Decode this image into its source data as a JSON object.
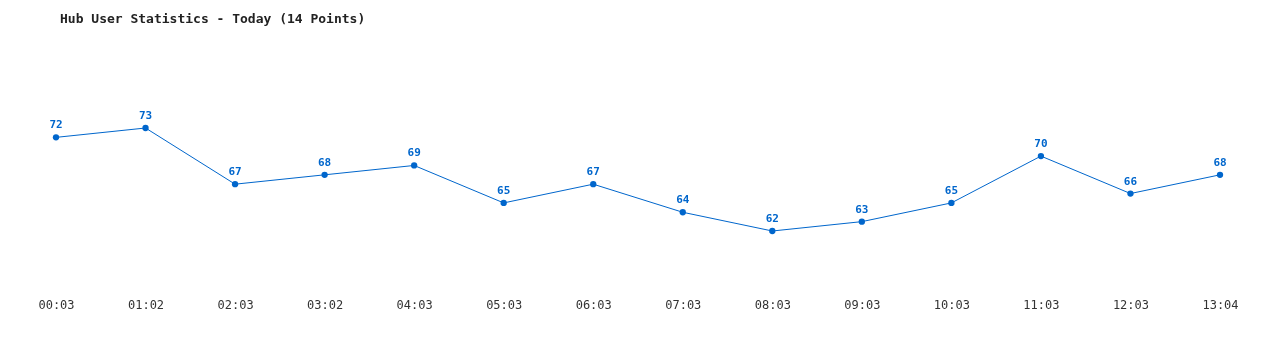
{
  "chart_data": {
    "type": "line",
    "title": "Hub User Statistics - Today (14 Points)",
    "categories": [
      "00:03",
      "01:02",
      "02:03",
      "03:02",
      "04:03",
      "05:03",
      "06:03",
      "07:03",
      "08:03",
      "09:03",
      "10:03",
      "11:03",
      "12:03",
      "13:04"
    ],
    "series": [
      {
        "color": "#0066cc",
        "values": [
          72,
          73,
          67,
          68,
          69,
          65,
          67,
          64,
          62,
          63,
          65,
          70,
          66,
          68
        ]
      }
    ],
    "data_labels": true,
    "marker": "circle",
    "grid": false,
    "tick_labels": "x"
  }
}
